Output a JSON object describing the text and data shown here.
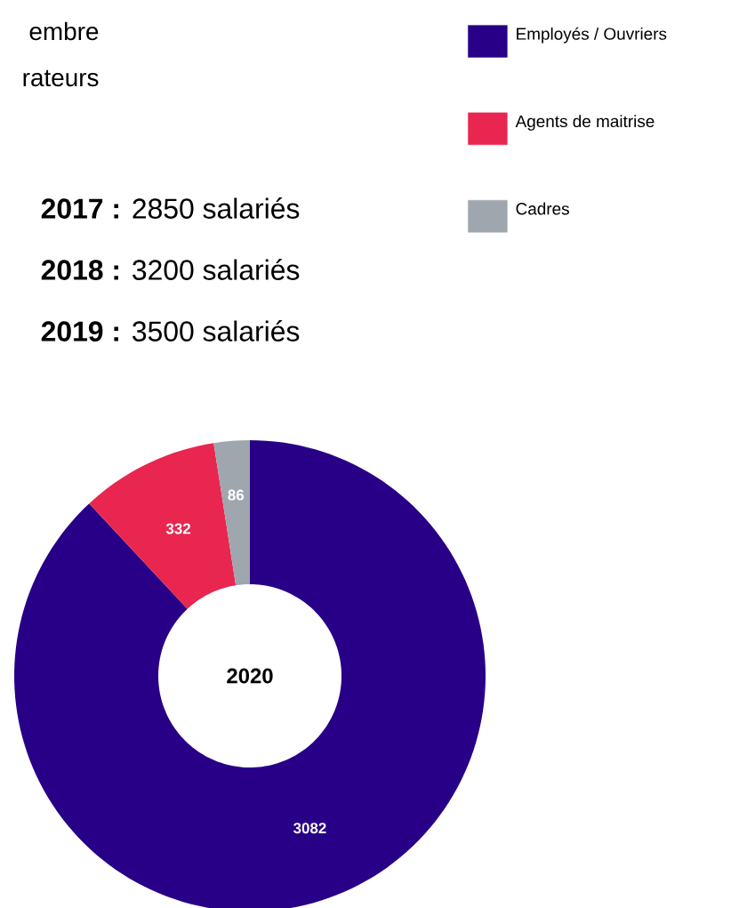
{
  "chart_data": {
    "type": "donut",
    "title": "2020",
    "categories": [
      "Employés / Ouvriers",
      "Agents de maitrise",
      "Cadres"
    ],
    "values": [
      3082,
      332,
      86
    ],
    "colors": [
      "#280087",
      "#e8264f",
      "#a0a6ad"
    ],
    "data_labels": true,
    "legend": "top right",
    "annotations": [
      "embre",
      "rateurs",
      "**2017 :** 2850 salariés",
      "**2018 :** 3200 salariés",
      "**2019 :** 3500 salariés"
    ]
  }
}
